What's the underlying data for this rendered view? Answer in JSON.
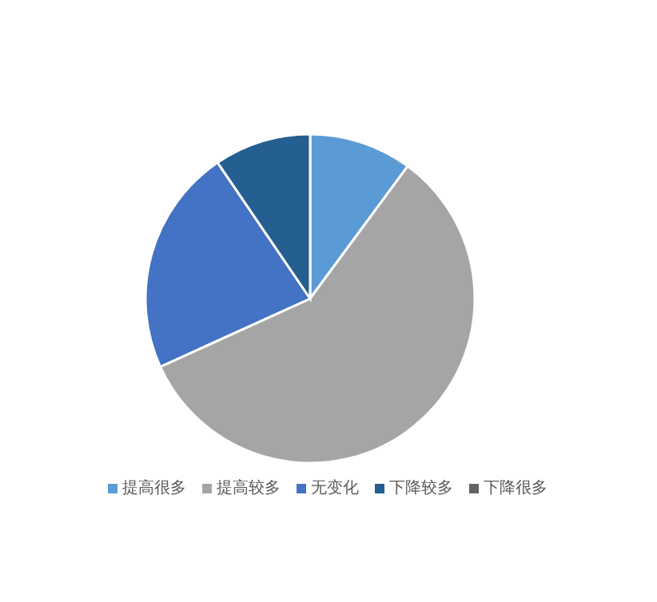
{
  "chart_data": {
    "type": "pie",
    "categories": [
      "提高很多",
      "提高较多",
      "无变化",
      "下降较多",
      "下降很多"
    ],
    "values": [
      10.1,
      58.1,
      22.3,
      9.5,
      0
    ],
    "colors": [
      "#5b9bd5",
      "#a5a5a5",
      "#4472c4",
      "#255e91",
      "#636363"
    ],
    "legend": "bottom"
  }
}
